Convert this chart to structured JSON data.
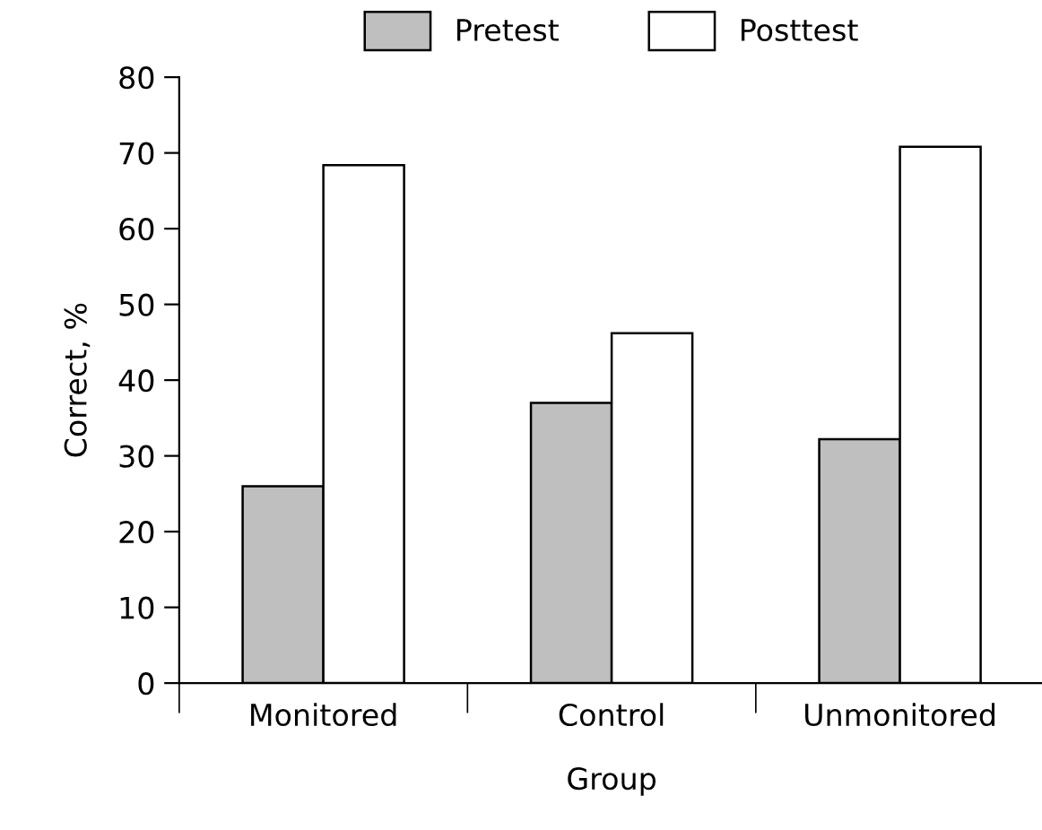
{
  "chart_data": {
    "type": "bar",
    "xlabel": "Group",
    "ylabel": "Correct, %",
    "categories": [
      "Monitored",
      "Control",
      "Unmonitored"
    ],
    "series": [
      {
        "name": "Pretest",
        "color": "#bfbfbf",
        "values": [
          26,
          37,
          32.2
        ]
      },
      {
        "name": "Posttest",
        "color": "#ffffff",
        "values": [
          68.4,
          46.2,
          70.8
        ]
      }
    ],
    "ylim": [
      0,
      80
    ],
    "yticks": [
      0,
      10,
      20,
      30,
      40,
      50,
      60,
      70,
      80
    ],
    "grid": false,
    "legend": "top"
  }
}
